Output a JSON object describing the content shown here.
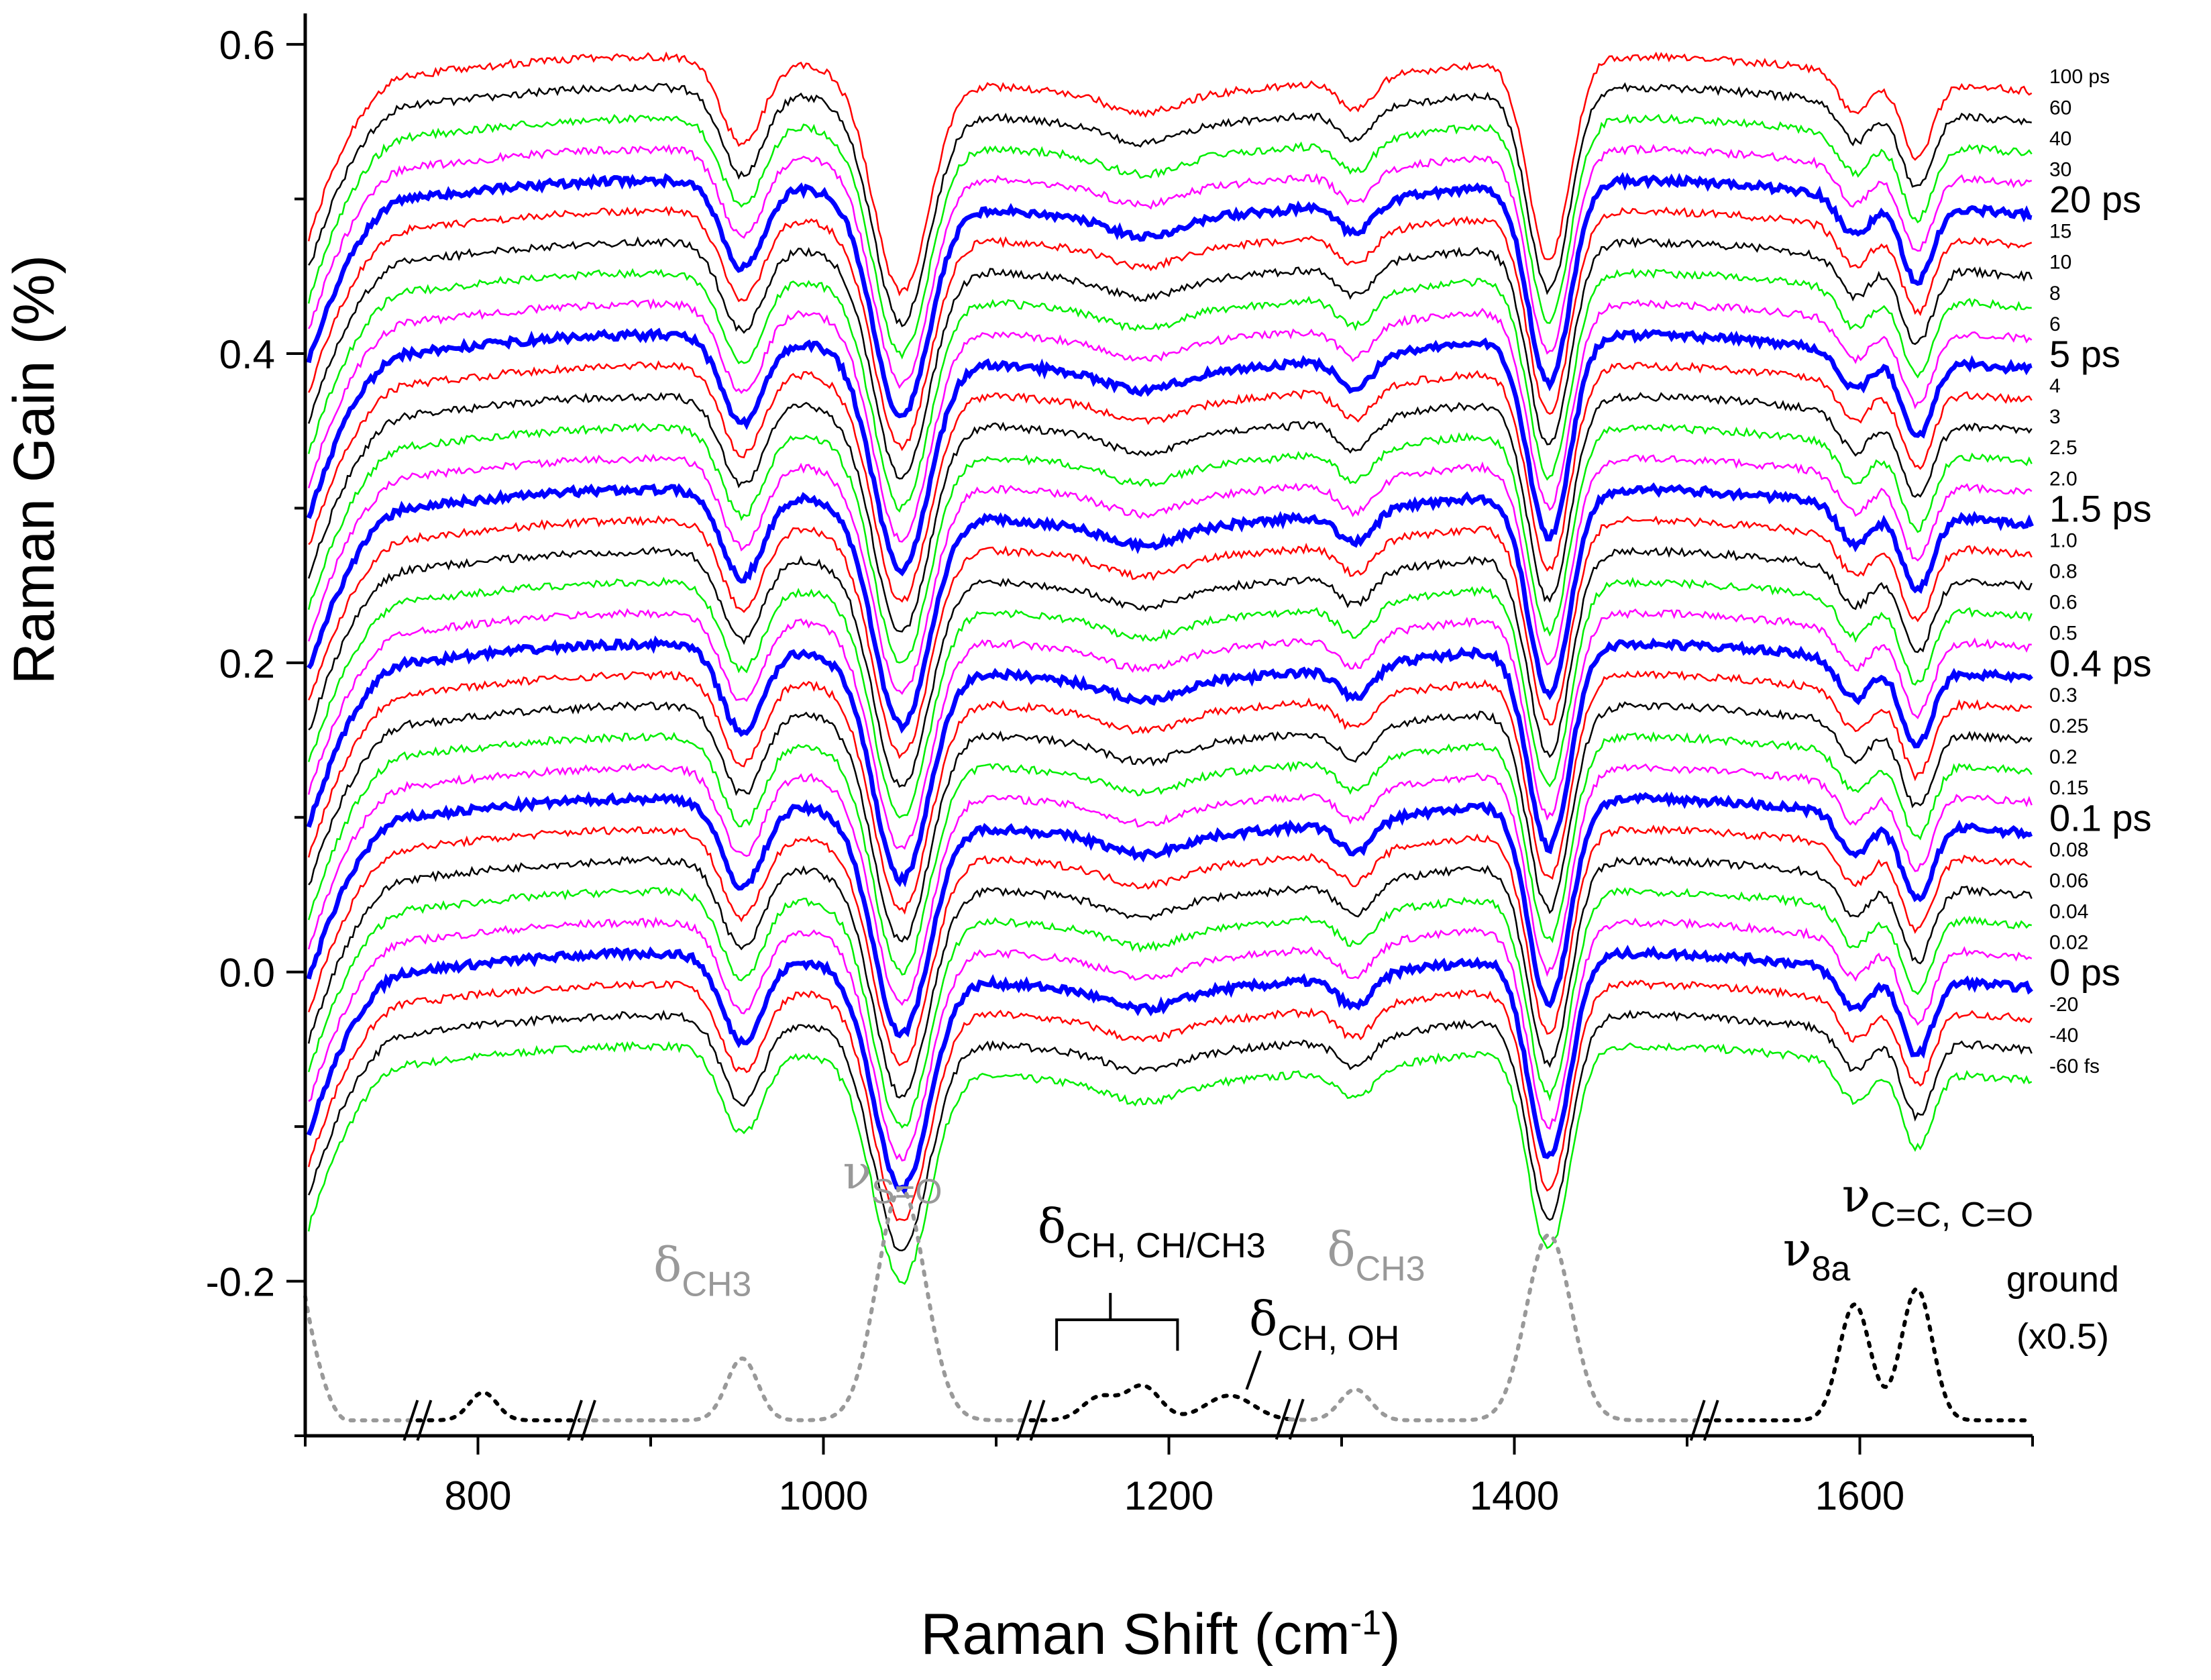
{
  "chart_data": {
    "type": "line",
    "title": "",
    "xlabel": "Raman Shift (cm",
    "xlabel_sup": "-1",
    "xlabel_end": ")",
    "ylabel": "Raman Gain (%)",
    "xlim": [
      700,
      1700
    ],
    "ylim": [
      -0.3,
      0.62
    ],
    "x_ticks": [
      800,
      1000,
      1200,
      1400,
      1600
    ],
    "x_tick_labels": [
      "800",
      "1000",
      "1200",
      "1400",
      "1600"
    ],
    "y_ticks": [
      -0.2,
      0.0,
      0.2,
      0.4,
      0.6
    ],
    "y_tick_labels": [
      "-0.2",
      "0.0",
      "0.2",
      "0.4",
      "0.6"
    ],
    "grid": false,
    "spectrum_features": [
      {
        "center": 953,
        "depth": 0.055,
        "width": 12
      },
      {
        "center": 1045,
        "depth": 0.14,
        "width": 16
      },
      {
        "center": 1185,
        "depth": 0.012,
        "width": 20
      },
      {
        "center": 1308,
        "depth": 0.02,
        "width": 10
      },
      {
        "center": 1420,
        "depth": 0.13,
        "width": 12
      },
      {
        "center": 1597,
        "depth": 0.025,
        "width": 9
      },
      {
        "center": 1633,
        "depth": 0.05,
        "width": 9
      }
    ],
    "series": [
      {
        "name": "-60 fs",
        "offset": -0.06,
        "color": "#00ee00",
        "bold": false
      },
      {
        "name": "-40",
        "offset": -0.04,
        "color": "#000000",
        "bold": false
      },
      {
        "name": "-20",
        "offset": -0.02,
        "color": "#ff0000",
        "bold": false
      },
      {
        "name": "0 ps",
        "offset": 0.0,
        "color": "#0000ff",
        "bold": true
      },
      {
        "name": "0.02",
        "offset": 0.02,
        "color": "#ff00ff",
        "bold": false
      },
      {
        "name": "0.04",
        "offset": 0.04,
        "color": "#00ee00",
        "bold": false
      },
      {
        "name": "0.06",
        "offset": 0.06,
        "color": "#000000",
        "bold": false
      },
      {
        "name": "0.08",
        "offset": 0.08,
        "color": "#ff0000",
        "bold": false
      },
      {
        "name": "0.1 ps",
        "offset": 0.1,
        "color": "#0000ff",
        "bold": true
      },
      {
        "name": "0.15",
        "offset": 0.12,
        "color": "#ff00ff",
        "bold": false
      },
      {
        "name": "0.2",
        "offset": 0.14,
        "color": "#00ee00",
        "bold": false
      },
      {
        "name": "0.25",
        "offset": 0.16,
        "color": "#000000",
        "bold": false
      },
      {
        "name": "0.3",
        "offset": 0.18,
        "color": "#ff0000",
        "bold": false
      },
      {
        "name": "0.4 ps",
        "offset": 0.2,
        "color": "#0000ff",
        "bold": true
      },
      {
        "name": "0.5",
        "offset": 0.22,
        "color": "#ff00ff",
        "bold": false
      },
      {
        "name": "0.6",
        "offset": 0.24,
        "color": "#00ee00",
        "bold": false
      },
      {
        "name": "0.8",
        "offset": 0.26,
        "color": "#000000",
        "bold": false
      },
      {
        "name": "1.0",
        "offset": 0.28,
        "color": "#ff0000",
        "bold": false
      },
      {
        "name": "1.5 ps",
        "offset": 0.3,
        "color": "#0000ff",
        "bold": true
      },
      {
        "name": "2.0",
        "offset": 0.32,
        "color": "#ff00ff",
        "bold": false
      },
      {
        "name": "2.5",
        "offset": 0.34,
        "color": "#00ee00",
        "bold": false
      },
      {
        "name": "3",
        "offset": 0.36,
        "color": "#000000",
        "bold": false
      },
      {
        "name": "4",
        "offset": 0.38,
        "color": "#ff0000",
        "bold": false
      },
      {
        "name": "5 ps",
        "offset": 0.4,
        "color": "#0000ff",
        "bold": true
      },
      {
        "name": "6",
        "offset": 0.42,
        "color": "#ff00ff",
        "bold": false
      },
      {
        "name": "8",
        "offset": 0.44,
        "color": "#00ee00",
        "bold": false
      },
      {
        "name": "10",
        "offset": 0.46,
        "color": "#000000",
        "bold": false
      },
      {
        "name": "15",
        "offset": 0.48,
        "color": "#ff0000",
        "bold": false
      },
      {
        "name": "20 ps",
        "offset": 0.5,
        "color": "#0000ff",
        "bold": true
      },
      {
        "name": "30",
        "offset": 0.52,
        "color": "#ff00ff",
        "bold": false
      },
      {
        "name": "40",
        "offset": 0.54,
        "color": "#00ee00",
        "bold": false
      },
      {
        "name": "60",
        "offset": 0.56,
        "color": "#000000",
        "bold": false
      },
      {
        "name": "100 ps",
        "offset": 0.58,
        "color": "#ff0000",
        "bold": false
      }
    ],
    "ground_state": {
      "label_lines": [
        "ground",
        "(x0.5)"
      ],
      "baseline": -0.29,
      "peaks": [
        {
          "center": 803,
          "height": 0.018,
          "width": 8,
          "color": "#000000"
        },
        {
          "center": 953,
          "height": 0.04,
          "width": 9,
          "color": "#999999"
        },
        {
          "center": 1045,
          "height": 0.15,
          "width": 14,
          "color": "#999999"
        },
        {
          "center": 1160,
          "height": 0.015,
          "width": 10,
          "color": "#000000"
        },
        {
          "center": 1185,
          "height": 0.022,
          "width": 10,
          "color": "#000000"
        },
        {
          "center": 1235,
          "height": 0.016,
          "width": 14,
          "color": "#000000"
        },
        {
          "center": 1308,
          "height": 0.02,
          "width": 9,
          "color": "#999999"
        },
        {
          "center": 1420,
          "height": 0.12,
          "width": 13,
          "color": "#999999"
        },
        {
          "center": 1597,
          "height": 0.075,
          "width": 9,
          "color": "#000000"
        },
        {
          "center": 1633,
          "height": 0.085,
          "width": 9,
          "color": "#000000"
        }
      ],
      "segments": [
        {
          "from": 700,
          "to": 765,
          "color": "#999999"
        },
        {
          "from": 765,
          "to": 860,
          "color": "#000000"
        },
        {
          "from": 860,
          "to": 1120,
          "color": "#999999"
        },
        {
          "from": 1120,
          "to": 1270,
          "color": "#000000"
        },
        {
          "from": 1270,
          "to": 1510,
          "color": "#999999"
        },
        {
          "from": 1510,
          "to": 1700,
          "color": "#000000"
        }
      ],
      "breaks": [
        765,
        860,
        1120,
        1270,
        1510
      ]
    },
    "annotations": [
      {
        "symbol": "ν",
        "sub": "S=O",
        "x": 1040,
        "y": -0.14,
        "color": "#999999"
      },
      {
        "symbol": "δ",
        "sub": "CH3",
        "x": 930,
        "y": -0.2,
        "color": "#999999"
      },
      {
        "symbol": "δ",
        "sub": "CH, CH/CH3",
        "x": 1190,
        "y": -0.175,
        "color": "#000000"
      },
      {
        "symbol": "δ",
        "sub": "CH, OH",
        "x": 1290,
        "y": -0.235,
        "color": "#000000"
      },
      {
        "symbol": "δ",
        "sub": "CH3",
        "x": 1320,
        "y": -0.19,
        "color": "#999999"
      },
      {
        "symbol": "ν",
        "sub": "8a",
        "x": 1575,
        "y": -0.19,
        "color": "#000000"
      },
      {
        "symbol": "ν",
        "sub": "C=C, C=O",
        "x": 1645,
        "y": -0.155,
        "color": "#000000"
      }
    ]
  }
}
